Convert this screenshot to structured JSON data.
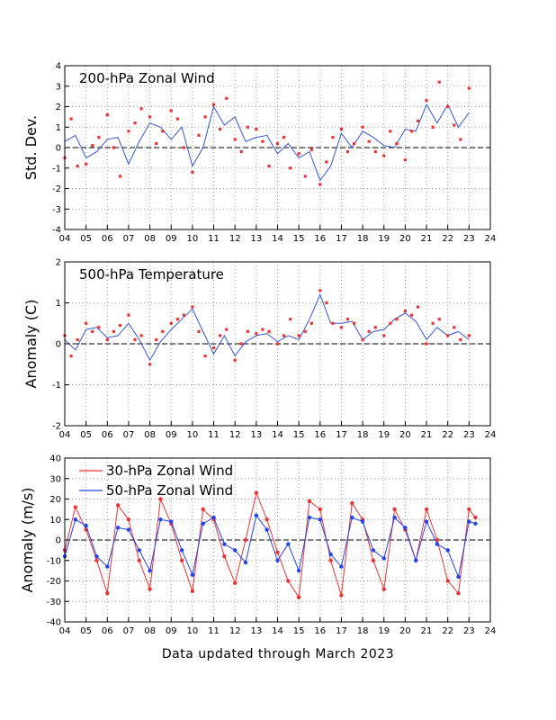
{
  "chart_data": [
    {
      "type": "scatter",
      "title": "200-hPa Zonal Wind",
      "ylabel": "Std. Dev.",
      "xlabel": "",
      "ylim": [
        -4,
        4
      ],
      "xlim": [
        2004,
        2024
      ],
      "x_tick_labels": [
        "04",
        "05",
        "06",
        "07",
        "08",
        "09",
        "10",
        "11",
        "12",
        "13",
        "14",
        "15",
        "16",
        "17",
        "18",
        "19",
        "20",
        "21",
        "22",
        "23",
        "24"
      ],
      "y_tick_labels": [
        "-4",
        "-3",
        "-2",
        "-1",
        "0",
        "1",
        "2",
        "3",
        "4"
      ],
      "grid": true,
      "colors": {
        "points": "#ee3333",
        "smooth": "#3355dd"
      },
      "series": [
        {
          "kind": "smoothed-line",
          "x": [
            2004.0,
            2004.5,
            2005.0,
            2005.5,
            2006.0,
            2006.5,
            2007.0,
            2007.5,
            2008.0,
            2008.5,
            2009.0,
            2009.5,
            2010.0,
            2010.5,
            2011.0,
            2011.5,
            2012.0,
            2012.5,
            2013.0,
            2013.5,
            2014.0,
            2014.5,
            2015.0,
            2015.5,
            2016.0,
            2016.5,
            2017.0,
            2017.5,
            2018.0,
            2018.5,
            2019.0,
            2019.5,
            2020.0,
            2020.5,
            2021.0,
            2021.5,
            2022.0,
            2022.5,
            2023.0
          ],
          "y": [
            0.3,
            0.6,
            -0.5,
            -0.2,
            0.4,
            0.5,
            -0.8,
            0.3,
            1.2,
            1.0,
            0.4,
            1.0,
            -0.9,
            0.0,
            2.0,
            1.1,
            1.5,
            0.3,
            0.5,
            0.6,
            -0.3,
            0.2,
            -0.5,
            -0.2,
            -1.6,
            -0.9,
            0.7,
            0.0,
            0.8,
            0.5,
            0.1,
            0.0,
            0.9,
            0.8,
            2.1,
            1.2,
            2.1,
            1.0,
            1.7
          ]
        },
        {
          "kind": "monthly-points",
          "x": [
            2004.0,
            2004.3,
            2004.6,
            2005.0,
            2005.3,
            2005.6,
            2006.0,
            2006.3,
            2006.6,
            2007.0,
            2007.3,
            2007.6,
            2008.0,
            2008.3,
            2008.6,
            2009.0,
            2009.3,
            2009.6,
            2010.0,
            2010.3,
            2010.6,
            2011.0,
            2011.3,
            2011.6,
            2012.0,
            2012.3,
            2012.6,
            2013.0,
            2013.3,
            2013.6,
            2014.0,
            2014.3,
            2014.6,
            2015.0,
            2015.3,
            2015.6,
            2016.0,
            2016.3,
            2016.6,
            2017.0,
            2017.3,
            2017.6,
            2018.0,
            2018.3,
            2018.6,
            2019.0,
            2019.3,
            2019.6,
            2020.0,
            2020.3,
            2020.6,
            2021.0,
            2021.3,
            2021.6,
            2022.0,
            2022.3,
            2022.6,
            2023.0
          ],
          "y": [
            -0.5,
            1.4,
            -0.9,
            -0.8,
            0.1,
            0.5,
            1.6,
            0.0,
            -1.4,
            0.8,
            1.2,
            1.9,
            1.5,
            0.2,
            0.8,
            1.8,
            1.4,
            0.0,
            -1.2,
            0.6,
            1.5,
            2.1,
            0.9,
            2.4,
            0.4,
            -0.2,
            1.0,
            0.9,
            0.3,
            -0.9,
            0.2,
            0.5,
            -1.0,
            -0.3,
            -1.4,
            -0.1,
            -1.8,
            -0.7,
            0.5,
            0.9,
            -0.2,
            0.2,
            1.0,
            0.3,
            -0.2,
            -0.4,
            0.8,
            0.2,
            -0.6,
            0.8,
            1.3,
            2.3,
            1.0,
            3.2,
            2.0,
            1.1,
            0.4,
            2.9
          ]
        }
      ]
    },
    {
      "type": "scatter",
      "title": "500-hPa Temperature",
      "ylabel": "Anomaly (C)",
      "xlabel": "",
      "ylim": [
        -2,
        2
      ],
      "xlim": [
        2004,
        2024
      ],
      "x_tick_labels": [
        "04",
        "05",
        "06",
        "07",
        "08",
        "09",
        "10",
        "11",
        "12",
        "13",
        "14",
        "15",
        "16",
        "17",
        "18",
        "19",
        "20",
        "21",
        "22",
        "23",
        "24"
      ],
      "y_tick_labels": [
        "-2",
        "-1",
        "0",
        "1",
        "2"
      ],
      "grid": true,
      "colors": {
        "points": "#ee3333",
        "smooth": "#3355dd"
      },
      "series": [
        {
          "kind": "smoothed-line",
          "x": [
            2004.0,
            2004.5,
            2005.0,
            2005.5,
            2006.0,
            2006.5,
            2007.0,
            2007.5,
            2008.0,
            2008.5,
            2009.0,
            2009.5,
            2010.0,
            2010.5,
            2011.0,
            2011.5,
            2012.0,
            2012.5,
            2013.0,
            2013.5,
            2014.0,
            2014.5,
            2015.0,
            2015.5,
            2016.0,
            2016.5,
            2017.0,
            2017.5,
            2018.0,
            2018.5,
            2019.0,
            2019.5,
            2020.0,
            2020.5,
            2021.0,
            2021.5,
            2022.0,
            2022.5,
            2023.0
          ],
          "y": [
            0.1,
            -0.15,
            0.35,
            0.4,
            0.15,
            0.2,
            0.5,
            0.1,
            -0.4,
            0.05,
            0.35,
            0.6,
            0.85,
            0.3,
            -0.25,
            0.2,
            -0.3,
            0.05,
            0.2,
            0.25,
            0.05,
            0.2,
            0.1,
            0.6,
            1.2,
            0.5,
            0.5,
            0.55,
            0.1,
            0.3,
            0.35,
            0.6,
            0.75,
            0.55,
            0.1,
            0.4,
            0.2,
            0.3,
            0.1
          ]
        },
        {
          "kind": "monthly-points",
          "x": [
            2004.0,
            2004.3,
            2004.6,
            2005.0,
            2005.3,
            2005.6,
            2006.0,
            2006.3,
            2006.6,
            2007.0,
            2007.3,
            2007.6,
            2008.0,
            2008.3,
            2008.6,
            2009.0,
            2009.3,
            2009.6,
            2010.0,
            2010.3,
            2010.6,
            2011.0,
            2011.3,
            2011.6,
            2012.0,
            2012.3,
            2012.6,
            2013.0,
            2013.3,
            2013.6,
            2014.0,
            2014.3,
            2014.6,
            2015.0,
            2015.3,
            2015.6,
            2016.0,
            2016.3,
            2016.6,
            2017.0,
            2017.3,
            2017.6,
            2018.0,
            2018.3,
            2018.6,
            2019.0,
            2019.3,
            2019.6,
            2020.0,
            2020.3,
            2020.6,
            2021.0,
            2021.3,
            2021.6,
            2022.0,
            2022.3,
            2022.6,
            2023.0
          ],
          "y": [
            0.2,
            -0.3,
            0.1,
            0.5,
            0.3,
            0.4,
            0.1,
            0.3,
            0.45,
            0.7,
            0.1,
            0.2,
            -0.5,
            0.1,
            0.3,
            0.5,
            0.6,
            0.7,
            0.9,
            0.3,
            -0.3,
            -0.1,
            0.2,
            0.35,
            -0.4,
            0.0,
            0.3,
            0.25,
            0.35,
            0.3,
            0.0,
            0.2,
            0.6,
            0.2,
            0.3,
            0.5,
            1.3,
            1.0,
            0.5,
            0.4,
            0.6,
            0.5,
            0.1,
            0.3,
            0.4,
            0.2,
            0.5,
            0.6,
            0.8,
            0.7,
            0.9,
            0.0,
            0.5,
            0.6,
            0.2,
            0.4,
            0.1,
            0.2
          ]
        }
      ]
    },
    {
      "type": "line",
      "title": "",
      "ylabel": "Anomaly (m/s)",
      "xlabel": "",
      "ylim": [
        -40,
        40
      ],
      "xlim": [
        2004,
        2024
      ],
      "x_tick_labels": [
        "04",
        "05",
        "06",
        "07",
        "08",
        "09",
        "10",
        "11",
        "12",
        "13",
        "14",
        "15",
        "16",
        "17",
        "18",
        "19",
        "20",
        "21",
        "22",
        "23",
        "24"
      ],
      "y_tick_labels": [
        "-40",
        "-30",
        "-20",
        "-10",
        "0",
        "10",
        "20",
        "30",
        "40"
      ],
      "grid": true,
      "legend": "top-left",
      "series": [
        {
          "name": "30-hPa Zonal Wind",
          "color": "#ee3333",
          "x": [
            2004.0,
            2004.5,
            2005.0,
            2005.5,
            2006.0,
            2006.5,
            2007.0,
            2007.5,
            2008.0,
            2008.5,
            2009.0,
            2009.5,
            2010.0,
            2010.5,
            2011.0,
            2011.5,
            2012.0,
            2012.5,
            2013.0,
            2013.5,
            2014.0,
            2014.5,
            2015.0,
            2015.5,
            2016.0,
            2016.5,
            2017.0,
            2017.5,
            2018.0,
            2018.5,
            2019.0,
            2019.5,
            2020.0,
            2020.5,
            2021.0,
            2021.5,
            2022.0,
            2022.5,
            2023.0,
            2023.3
          ],
          "y": [
            -5,
            16,
            5,
            -10,
            -26,
            17,
            10,
            -10,
            -24,
            20,
            8,
            -10,
            -25,
            15,
            10,
            -8,
            -21,
            0,
            23,
            10,
            -6,
            -20,
            -28,
            19,
            15,
            -10,
            -27,
            18,
            10,
            -10,
            -24,
            15,
            5,
            -10,
            15,
            0,
            -20,
            -26,
            15,
            11
          ]
        },
        {
          "name": "50-hPa Zonal Wind",
          "color": "#2244ee",
          "x": [
            2004.0,
            2004.5,
            2005.0,
            2005.5,
            2006.0,
            2006.5,
            2007.0,
            2007.5,
            2008.0,
            2008.5,
            2009.0,
            2009.5,
            2010.0,
            2010.5,
            2011.0,
            2011.5,
            2012.0,
            2012.5,
            2013.0,
            2013.5,
            2014.0,
            2014.5,
            2015.0,
            2015.5,
            2016.0,
            2016.5,
            2017.0,
            2017.5,
            2018.0,
            2018.5,
            2019.0,
            2019.5,
            2020.0,
            2020.5,
            2021.0,
            2021.5,
            2022.0,
            2022.5,
            2023.0,
            2023.3
          ],
          "y": [
            -8,
            10,
            7,
            -8,
            -13,
            6,
            5,
            -5,
            -15,
            10,
            9,
            -5,
            -17,
            8,
            11,
            -2,
            -5,
            -11,
            12,
            5,
            -10,
            -2,
            -15,
            11,
            10,
            -7,
            -13,
            11,
            9,
            -5,
            -9,
            11,
            6,
            -10,
            9,
            -2,
            -5,
            -18,
            9,
            8
          ]
        }
      ]
    }
  ],
  "footer": "Data updated through March 2023"
}
